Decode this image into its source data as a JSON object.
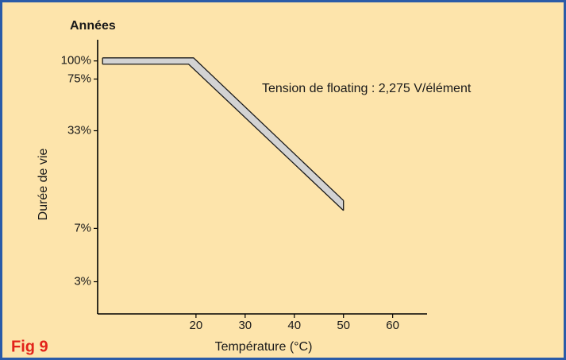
{
  "chart_data": {
    "type": "band",
    "y_unit_title": "Années",
    "y_label": "Durée de vie",
    "x_label": "Température (°C)",
    "annotation": "Tension de floating : 2,275 V/élément",
    "figure_label": "Fig 9",
    "series": [
      {
        "x": [
          1,
          19.5,
          50
        ],
        "values": [
          105,
          105,
          10.9
        ]
      },
      {
        "x": [
          1,
          18.5,
          50
        ],
        "values": [
          95,
          95,
          9.3
        ]
      }
    ],
    "fill": "#d3d3d3",
    "line_color": "#1a1a1a",
    "xlim": [
      0,
      67
    ],
    "xticks": [
      20,
      30,
      40,
      50,
      60
    ],
    "ylim": [
      1.8,
      140
    ],
    "yscale": "log",
    "yticks": [
      {
        "value": 100,
        "label": "100%"
      },
      {
        "value": 75,
        "label": "75%"
      },
      {
        "value": 33,
        "label": "33%"
      },
      {
        "value": 7,
        "label": "7%"
      },
      {
        "value": 3,
        "label": "3%"
      }
    ]
  }
}
